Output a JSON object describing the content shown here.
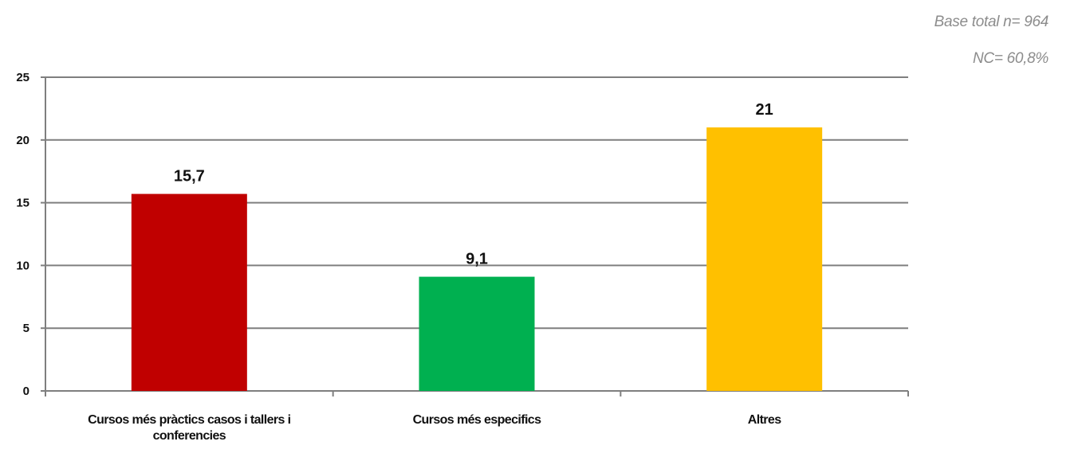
{
  "notes": {
    "base": "Base total n= 964",
    "nc": "NC= 60,8%"
  },
  "chart_data": {
    "type": "bar",
    "categories": [
      "Cursos més pràctics casos i tallers i conferencies",
      "Cursos més especifics",
      "Altres"
    ],
    "category_lines": [
      [
        "Cursos més pràctics casos i tallers i",
        "conferencies"
      ],
      [
        "Cursos més especifics"
      ],
      [
        "Altres"
      ]
    ],
    "values": [
      15.7,
      9.1,
      21
    ],
    "data_labels": [
      "15,7",
      "9,1",
      "21"
    ],
    "colors": [
      "#c00000",
      "#00b050",
      "#ffc000"
    ],
    "title": "",
    "xlabel": "",
    "ylabel": "",
    "ylim": [
      0,
      25
    ],
    "yticks": [
      0,
      5,
      10,
      15,
      20,
      25
    ],
    "grid": true,
    "legend": "none"
  }
}
